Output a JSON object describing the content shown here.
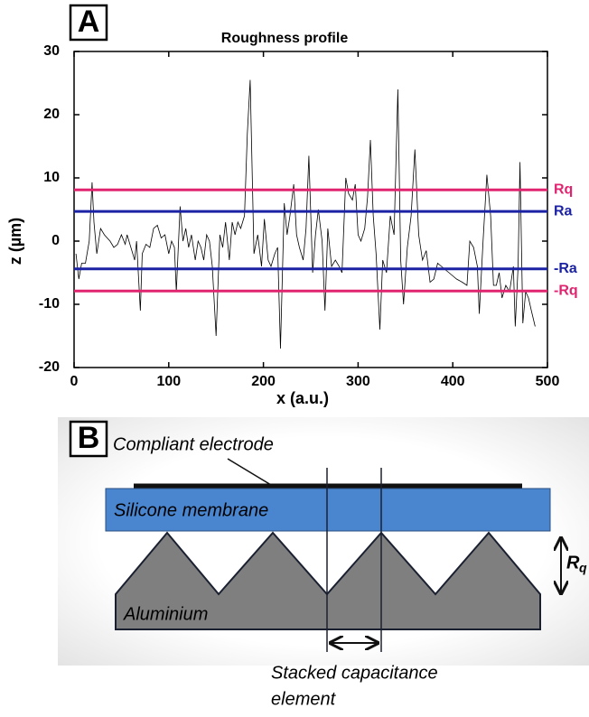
{
  "chart_data": {
    "type": "line",
    "panel_label": "A",
    "title": "Roughness profile",
    "xlabel": "x (a.u.)",
    "ylabel": "z (µm)",
    "xlim": [
      0,
      500
    ],
    "ylim": [
      -20,
      30
    ],
    "xticks": [
      0,
      100,
      200,
      300,
      400,
      500
    ],
    "yticks": [
      -20,
      -10,
      0,
      10,
      20,
      30
    ],
    "series": [
      {
        "color": "#000000",
        "x": [
          2,
          5,
          8,
          12,
          16,
          19,
          21,
          24,
          28,
          32,
          38,
          42,
          46,
          50,
          54,
          56,
          60,
          64,
          66,
          70,
          72,
          76,
          80,
          84,
          88,
          92,
          96,
          100,
          103,
          106,
          108,
          112,
          115,
          118,
          121,
          124,
          128,
          131,
          134,
          137,
          140,
          143,
          146,
          150,
          154,
          157,
          160,
          164,
          167,
          170,
          173,
          176,
          180,
          183,
          186,
          190,
          194,
          198,
          201,
          205,
          208,
          212,
          215,
          218,
          222,
          225,
          228,
          232,
          235,
          238,
          242,
          245,
          248,
          252,
          255,
          258,
          262,
          265,
          268,
          272,
          276,
          280,
          283,
          287,
          290,
          294,
          297,
          300,
          303,
          307,
          310,
          313,
          316,
          319,
          323,
          326,
          330,
          334,
          338,
          342,
          345,
          348,
          352,
          356,
          360,
          364,
          368,
          372,
          376,
          380,
          384,
          388,
          392,
          396,
          400,
          404,
          410,
          415,
          418,
          422,
          426,
          428,
          432,
          436,
          440,
          443,
          446,
          449,
          452,
          456,
          460,
          464,
          466,
          469,
          471,
          474,
          477,
          480,
          483,
          487
        ],
        "values": [
          -2,
          -6,
          -3.5,
          -3.5,
          0,
          9.3,
          3,
          -2,
          2,
          1,
          0,
          -1,
          -0.5,
          1,
          -0.5,
          1,
          -1,
          -3,
          0,
          -11,
          -2,
          -0.5,
          -1,
          2,
          2.5,
          0.5,
          1,
          -2,
          0,
          -1,
          -8,
          5.5,
          0,
          2,
          -1,
          1,
          -3,
          0,
          -1,
          -3,
          1,
          0,
          -4,
          -15,
          1,
          -1,
          3,
          -3,
          3,
          1,
          3,
          2,
          4,
          17,
          25.5,
          -2,
          1,
          -4,
          3.5,
          -3,
          -4,
          -2,
          -1,
          -17,
          6,
          1,
          4,
          9,
          1,
          -1,
          -3,
          2,
          13.5,
          -5,
          1,
          5,
          0,
          -11,
          2,
          -4,
          -3,
          -4,
          -5,
          10,
          7.5,
          6.5,
          9,
          1,
          0,
          2,
          7,
          16,
          4,
          -2,
          -14,
          -3,
          -5,
          4,
          1,
          24,
          -3,
          -10,
          -1,
          4,
          14.5,
          1,
          -3,
          -1.5,
          -6.5,
          -6,
          -3.5,
          -4,
          -4.5,
          -5,
          -5.5,
          -6,
          -6.5,
          -7,
          0,
          -1,
          -4,
          -11.5,
          0,
          10.5,
          4,
          -7,
          -7,
          -5,
          -9,
          -7,
          -8,
          -4,
          -13.5,
          -4,
          12.5,
          -13,
          -8,
          -9,
          -11,
          -13.5
        ]
      }
    ],
    "reference_lines": [
      {
        "label": "Rq",
        "value": 8.1,
        "color": "#e0246f"
      },
      {
        "label": "Ra",
        "value": 4.7,
        "color": "#1c22a4"
      },
      {
        "label": "-Ra",
        "value": -4.4,
        "color": "#1c22a4"
      },
      {
        "label": "-Rq",
        "value": -7.9,
        "color": "#e0246f"
      }
    ]
  },
  "diagram": {
    "panel_label": "B",
    "electrode": "Compliant electrode",
    "membrane": "Silicone membrane",
    "substrate": "Aluminium",
    "roughness_symbol": {
      "main": "R",
      "sub": "q"
    },
    "element_label": [
      "Stacked capacitance",
      "element"
    ]
  }
}
